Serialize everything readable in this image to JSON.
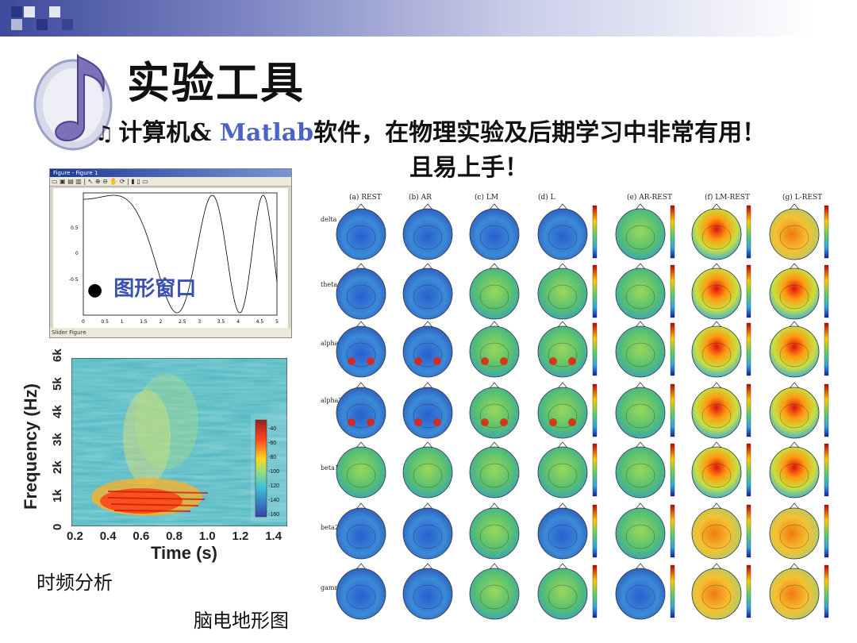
{
  "slide": {
    "title": "实验工具",
    "line1_prefix": "计算机& ",
    "line1_brand": "Matlab",
    "line1_suffix": "软件，在物理实验及后期学习中非常有用！",
    "line2": "且易上手！",
    "accent": "#4b63c8"
  },
  "figure_window": {
    "title": "Figure - Figure 1",
    "label": "图形窗口",
    "yticks": [
      "0.5",
      "0",
      "-0.5"
    ],
    "xticks": [
      "0",
      "0.5",
      "1",
      "1.5",
      "2",
      "2.5",
      "3",
      "3.5",
      "4",
      "4.5",
      "5"
    ],
    "status": "Slider Figure"
  },
  "spectrogram": {
    "ylabel": "Frequency (Hz)",
    "xlabel": "Time (s)",
    "yticks": [
      "0",
      "1k",
      "2k",
      "3k",
      "4k",
      "5k",
      "6k"
    ],
    "xticks": [
      "0.2",
      "0.4",
      "0.6",
      "0.8",
      "1.0",
      "1.2",
      "1.4"
    ],
    "colorbar_ticks": [
      "-40",
      "-60",
      "-80",
      "-100",
      "-120",
      "-140",
      "-160"
    ],
    "caption": "时频分析"
  },
  "eeg": {
    "columns": [
      "(a) REST",
      "(b) AR",
      "(c) LM",
      "(d) L",
      "(e) AR-REST",
      "(f) LM-REST",
      "(g) L-REST"
    ],
    "rows": [
      "delta",
      "theta",
      "alpha1",
      "alpha2",
      "beta1",
      "beta2",
      "gamma"
    ],
    "caption": "脑电地形图"
  }
}
